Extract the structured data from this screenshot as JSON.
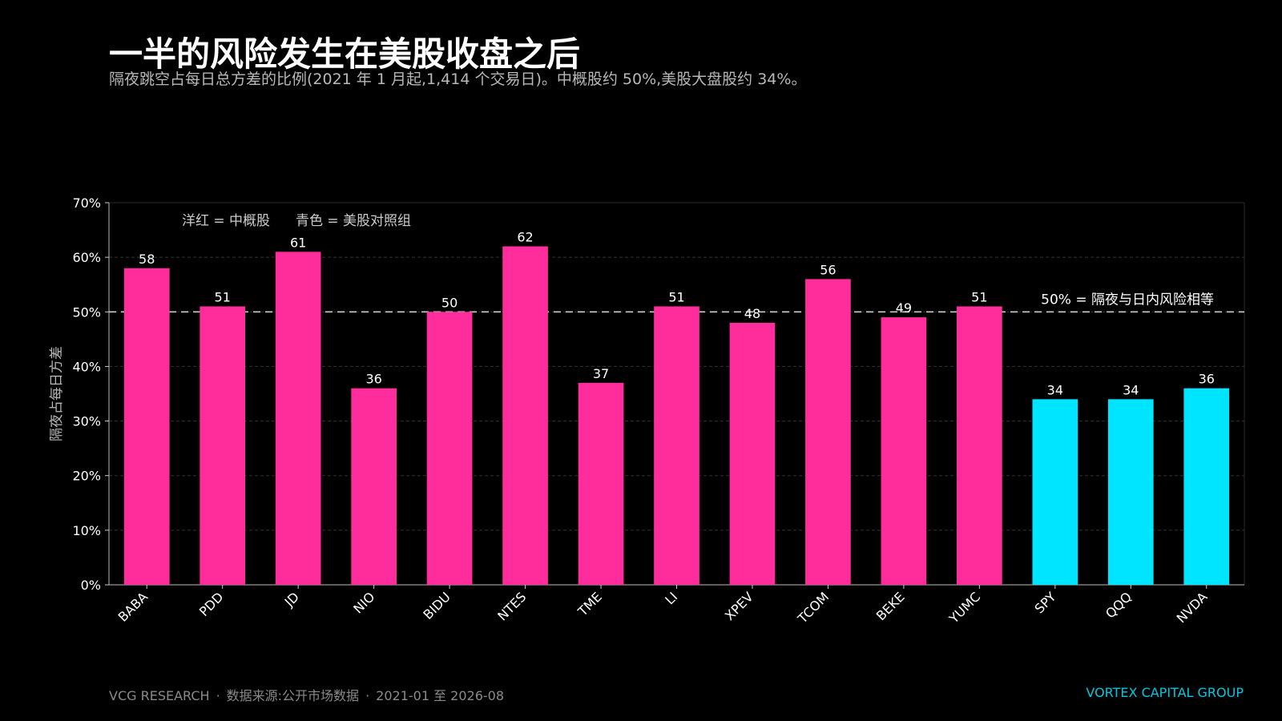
{
  "title": "一半的风险发生在美股收盘之后",
  "subtitle": "隔夜跳空占每日总方差的比例(2021 年 1 月起,1,414 个交易日)。中概股约 50%,美股大盘股约 34%。",
  "footer": {
    "brand": "VCG RESEARCH",
    "separator": "·",
    "source": "数据来源:公开市场数据",
    "period": "2021-01 至 2026-08",
    "company": "VORTEX CAPITAL GROUP"
  },
  "colors": {
    "background": "#000000",
    "china_adr": "#ff2d9b",
    "us_control": "#00e5ff",
    "reference_line": "#cccccc",
    "grid": "#333333",
    "company": "#00c8e0"
  },
  "chart_data": {
    "type": "bar",
    "ylabel": "隔夜占每日方差",
    "ylim": [
      0,
      70
    ],
    "yticks": [
      0,
      10,
      20,
      30,
      40,
      50,
      60,
      70
    ],
    "ytick_labels": [
      "0%",
      "10%",
      "20%",
      "30%",
      "40%",
      "50%",
      "60%",
      "70%"
    ],
    "grid": true,
    "categories": [
      "BABA",
      "PDD",
      "JD",
      "NIO",
      "BIDU",
      "NTES",
      "TME",
      "LI",
      "XPEV",
      "TCOM",
      "BEKE",
      "YUMC",
      "SPY",
      "QQQ",
      "NVDA"
    ],
    "values": [
      58,
      51,
      61,
      36,
      50,
      62,
      37,
      51,
      48,
      56,
      49,
      51,
      34,
      34,
      36
    ],
    "value_labels": [
      "58",
      "51",
      "61",
      "36",
      "50",
      "62",
      "37",
      "51",
      "48",
      "56",
      "49",
      "51",
      "34",
      "34",
      "36"
    ],
    "groups": [
      "china",
      "china",
      "china",
      "china",
      "china",
      "china",
      "china",
      "china",
      "china",
      "china",
      "china",
      "china",
      "us",
      "us",
      "us"
    ],
    "legend": {
      "china_label": "洋红 = 中概股",
      "us_label": "青色 = 美股对照组",
      "placement": "top-left"
    },
    "reference_line": {
      "value": 50,
      "label": "50% = 隔夜与日内风险相等",
      "style": "dashed"
    }
  }
}
